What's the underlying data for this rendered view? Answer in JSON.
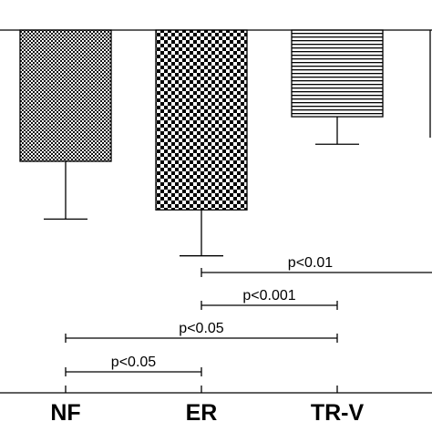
{
  "chart_data": {
    "type": "bar",
    "orientation": "downward-from-baseline",
    "categories": [
      "NF",
      "ER",
      "TR-V"
    ],
    "values": [
      -1.0,
      -1.37,
      -0.66
    ],
    "errors": [
      0.44,
      0.35,
      0.21
    ],
    "ylim": [
      -1.85,
      0.05
    ],
    "bar_patterns": [
      "fine-checker",
      "coarse-checker",
      "horizontal-stripes",
      "none"
    ],
    "partial_fourth_bar": {
      "value": -0.82
    },
    "significance": [
      {
        "from": "ER",
        "to": "beyond-right-edge",
        "label": "p<0.01"
      },
      {
        "from": "ER",
        "to": "TR-V",
        "label": "p<0.001"
      },
      {
        "from": "NF",
        "to": "TR-V",
        "label": "p<0.05"
      },
      {
        "from": "NF",
        "to": "ER",
        "label": "p<0.05"
      }
    ],
    "title": "",
    "xlabel": "",
    "ylabel": ""
  }
}
